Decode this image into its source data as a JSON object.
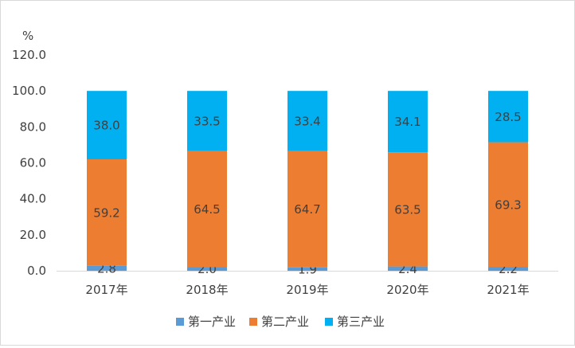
{
  "chart_data": {
    "type": "bar",
    "stacked": true,
    "unit_label": "%",
    "categories": [
      "2017年",
      "2018年",
      "2019年",
      "2020年",
      "2021年"
    ],
    "series": [
      {
        "name": "第一产业",
        "color": "#5B9BD5",
        "values": [
          2.8,
          2.0,
          1.9,
          2.4,
          2.2
        ]
      },
      {
        "name": "第二产业",
        "color": "#ED7D31",
        "values": [
          59.2,
          64.5,
          64.7,
          63.5,
          69.3
        ]
      },
      {
        "name": "第三产业",
        "color": "#00B0F0",
        "values": [
          38.0,
          33.5,
          33.4,
          34.1,
          28.5
        ]
      }
    ],
    "ylim": [
      0,
      120
    ],
    "yticks": [
      "0.0",
      "20.0",
      "40.0",
      "60.0",
      "80.0",
      "100.0",
      "120.0"
    ],
    "ytick_values": [
      0,
      20,
      40,
      60,
      80,
      100,
      120
    ],
    "grid": false,
    "legend_position": "bottom"
  }
}
